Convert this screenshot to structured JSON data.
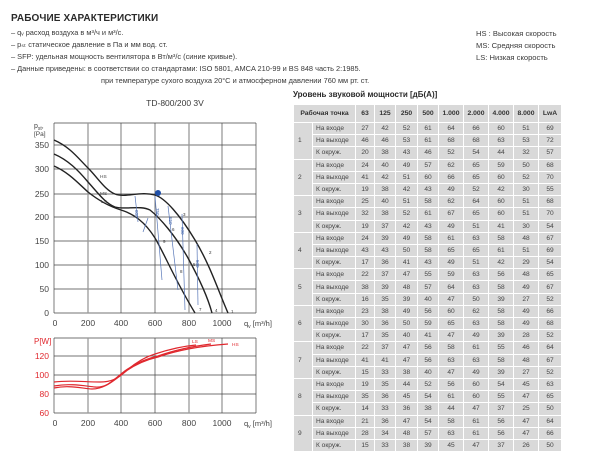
{
  "header": {
    "title": "РАБОЧИЕ ХАРАКТЕРИСТИКИ",
    "lines": [
      "– qᵥ расход воздуха в м³/ч и м³/с.",
      "– pₛₜ  статическое давление в Па и мм вод. ст.",
      "– SFP: удельная мощность вентилятора в Вт/м³/с (синие кривые).",
      "– Данные приведены: в соответствии со стандартами: ISO 5801, AMCA 210-99 и BS 848 часть 2:1985.",
      "при температуре сухого воздуха 20°C и атмосферном давлении 760 мм рт. ст."
    ]
  },
  "speed_legend": [
    "HS : Высокая скорость",
    "MS: Средняя скорость",
    "LS: Низкая скорость"
  ],
  "chart_data": [
    {
      "type": "line",
      "title": "TD-800/200 3V",
      "xlabel": "qᵥ [m³/h]",
      "ylabel": "pₛₜ [Pa]",
      "x_ticks": [
        "0",
        "200",
        "400",
        "600",
        "800",
        "1000"
      ],
      "y_ticks": [
        "0",
        "50",
        "100",
        "150",
        "200",
        "250",
        "300",
        "350"
      ],
      "xlim": [
        0,
        1200
      ],
      "ylim": [
        0,
        395
      ],
      "grid": true,
      "series": [
        {
          "name": "HS",
          "x": [
            0,
            100,
            200,
            300,
            400,
            500,
            600,
            620,
            700,
            800,
            900,
            1000,
            1040
          ],
          "y": [
            362,
            340,
            300,
            262,
            256,
            260,
            258,
            252,
            230,
            195,
            140,
            60,
            0
          ]
        },
        {
          "name": "MS",
          "x": [
            0,
            100,
            200,
            300,
            400,
            500,
            600,
            700,
            800,
            900,
            950
          ],
          "y": [
            332,
            310,
            270,
            237,
            226,
            227,
            205,
            172,
            125,
            50,
            0
          ]
        },
        {
          "name": "LS",
          "x": [
            0,
            100,
            200,
            300,
            400,
            500,
            600,
            700,
            800,
            840
          ],
          "y": [
            310,
            288,
            252,
            228,
            212,
            196,
            160,
            110,
            50,
            0
          ]
        }
      ],
      "curve_labels": [
        "HS",
        "MS",
        "LS"
      ],
      "operating_points": [
        "1",
        "2",
        "3",
        "4",
        "5",
        "6",
        "7",
        "8",
        "9"
      ],
      "sfp_labels": [
        "800",
        "750",
        "650",
        "600",
        "500",
        "700"
      ],
      "highlight_point": {
        "x": 620,
        "y": 252,
        "color": "#1f4fa8"
      },
      "colors": {
        "curves": "#222222",
        "sfp": "#3a5fa8"
      }
    },
    {
      "type": "line",
      "title": "",
      "xlabel": "qᵥ [m³/h]",
      "ylabel": "P[W]",
      "x_ticks": [
        "0",
        "200",
        "400",
        "600",
        "800",
        "1000"
      ],
      "y_ticks": [
        "60",
        "80",
        "100",
        "120"
      ],
      "xlim": [
        0,
        1200
      ],
      "ylim": [
        60,
        139
      ],
      "grid": true,
      "series": [
        {
          "name": "LS",
          "x": [
            0,
            100,
            200,
            300,
            400,
            500,
            600,
            700,
            800,
            850
          ],
          "y": [
            92,
            93,
            92,
            93,
            99,
            112,
            121,
            126,
            130,
            131
          ]
        },
        {
          "name": "MS",
          "x": [
            0,
            100,
            200,
            300,
            400,
            500,
            600,
            700,
            800,
            940
          ],
          "y": [
            88,
            89,
            88,
            87,
            98,
            110,
            119,
            125,
            129,
            132
          ]
        },
        {
          "name": "HS",
          "x": [
            0,
            100,
            200,
            300,
            400,
            500,
            600,
            700,
            800,
            900,
            1040
          ],
          "y": [
            86,
            88,
            86,
            86,
            97,
            109,
            118,
            124,
            128,
            131,
            133
          ]
        }
      ],
      "colors": {
        "curves": "#e0282e",
        "axis_label": "#e0282e"
      }
    }
  ],
  "sound_table": {
    "title": "Уровень звуковой мощности [дБ(A)]",
    "headers": [
      "Рабочая точка",
      "63",
      "125",
      "250",
      "500",
      "1.000",
      "2.000",
      "4.000",
      "8.000",
      "LwA"
    ],
    "groups": [
      {
        "point": "1",
        "rows": [
          {
            "label": "На входе",
            "values": [
              "27",
              "42",
              "52",
              "61",
              "64",
              "66",
              "60",
              "51",
              "69"
            ]
          },
          {
            "label": "На выходе",
            "values": [
              "46",
              "46",
              "53",
              "61",
              "68",
              "68",
              "63",
              "53",
              "72"
            ]
          },
          {
            "label": "К окруж.",
            "values": [
              "20",
              "38",
              "43",
              "46",
              "52",
              "54",
              "44",
              "32",
              "57"
            ]
          }
        ]
      },
      {
        "point": "2",
        "rows": [
          {
            "label": "На входе",
            "values": [
              "24",
              "40",
              "49",
              "57",
              "62",
              "65",
              "59",
              "50",
              "68"
            ]
          },
          {
            "label": "На выходе",
            "values": [
              "41",
              "42",
              "51",
              "60",
              "66",
              "65",
              "60",
              "52",
              "70"
            ]
          },
          {
            "label": "К окруж.",
            "values": [
              "19",
              "38",
              "42",
              "43",
              "49",
              "52",
              "42",
              "30",
              "55"
            ]
          }
        ]
      },
      {
        "point": "3",
        "rows": [
          {
            "label": "На входе",
            "values": [
              "25",
              "40",
              "51",
              "58",
              "62",
              "64",
              "60",
              "51",
              "68"
            ]
          },
          {
            "label": "На выходе",
            "values": [
              "32",
              "38",
              "52",
              "61",
              "67",
              "65",
              "60",
              "51",
              "70"
            ]
          },
          {
            "label": "К окруж.",
            "values": [
              "19",
              "37",
              "42",
              "43",
              "49",
              "51",
              "41",
              "30",
              "54"
            ]
          }
        ]
      },
      {
        "point": "4",
        "rows": [
          {
            "label": "На входе",
            "values": [
              "24",
              "39",
              "49",
              "58",
              "61",
              "63",
              "58",
              "48",
              "67"
            ]
          },
          {
            "label": "На выходе",
            "values": [
              "43",
              "43",
              "50",
              "58",
              "65",
              "65",
              "61",
              "51",
              "69"
            ]
          },
          {
            "label": "К окруж.",
            "values": [
              "17",
              "36",
              "41",
              "43",
              "49",
              "51",
              "42",
              "29",
              "54"
            ]
          }
        ]
      },
      {
        "point": "5",
        "rows": [
          {
            "label": "На входе",
            "values": [
              "22",
              "37",
              "47",
              "55",
              "59",
              "63",
              "56",
              "48",
              "65"
            ]
          },
          {
            "label": "На выходе",
            "values": [
              "38",
              "39",
              "48",
              "57",
              "64",
              "63",
              "58",
              "49",
              "67"
            ]
          },
          {
            "label": "К окруж.",
            "values": [
              "16",
              "35",
              "39",
              "40",
              "47",
              "50",
              "39",
              "27",
              "52"
            ]
          }
        ]
      },
      {
        "point": "6",
        "rows": [
          {
            "label": "На входе",
            "values": [
              "23",
              "38",
              "49",
              "56",
              "60",
              "62",
              "58",
              "49",
              "66"
            ]
          },
          {
            "label": "На выходе",
            "values": [
              "30",
              "36",
              "50",
              "59",
              "65",
              "63",
              "58",
              "49",
              "68"
            ]
          },
          {
            "label": "К окруж.",
            "values": [
              "17",
              "35",
              "40",
              "41",
              "47",
              "49",
              "39",
              "28",
              "52"
            ]
          }
        ]
      },
      {
        "point": "7",
        "rows": [
          {
            "label": "На входе",
            "values": [
              "22",
              "37",
              "47",
              "56",
              "58",
              "61",
              "55",
              "46",
              "64"
            ]
          },
          {
            "label": "На выходе",
            "values": [
              "41",
              "41",
              "47",
              "56",
              "63",
              "63",
              "58",
              "48",
              "67"
            ]
          },
          {
            "label": "К окруж.",
            "values": [
              "15",
              "33",
              "38",
              "40",
              "47",
              "49",
              "39",
              "27",
              "52"
            ]
          }
        ]
      },
      {
        "point": "8",
        "rows": [
          {
            "label": "На входе",
            "values": [
              "19",
              "35",
              "44",
              "52",
              "56",
              "60",
              "54",
              "45",
              "63"
            ]
          },
          {
            "label": "На выходе",
            "values": [
              "35",
              "36",
              "45",
              "54",
              "61",
              "60",
              "55",
              "47",
              "65"
            ]
          },
          {
            "label": "К окруж.",
            "values": [
              "14",
              "33",
              "36",
              "38",
              "44",
              "47",
              "37",
              "25",
              "50"
            ]
          }
        ]
      },
      {
        "point": "9",
        "rows": [
          {
            "label": "На входе",
            "values": [
              "21",
              "36",
              "47",
              "54",
              "58",
              "61",
              "56",
              "47",
              "64"
            ]
          },
          {
            "label": "На выходе",
            "values": [
              "28",
              "34",
              "48",
              "57",
              "63",
              "61",
              "56",
              "47",
              "66"
            ]
          },
          {
            "label": "К окруж.",
            "values": [
              "15",
              "33",
              "38",
              "39",
              "45",
              "47",
              "37",
              "26",
              "50"
            ]
          }
        ]
      }
    ]
  }
}
